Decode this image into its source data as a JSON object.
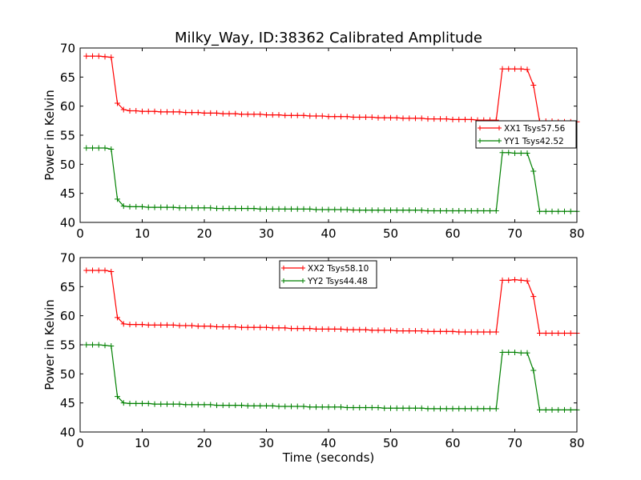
{
  "title": "Milky_Way, ID:38362 Calibrated Amplitude",
  "colors": {
    "red": "#ff0000",
    "green": "#008000"
  },
  "chart_data": [
    {
      "type": "line",
      "xlabel": "",
      "ylabel": "Power in Kelvin",
      "xlim": [
        0,
        80
      ],
      "ylim": [
        40,
        70
      ],
      "xticks": [
        0,
        10,
        20,
        30,
        40,
        50,
        60,
        70,
        80
      ],
      "yticks": [
        40,
        45,
        50,
        55,
        60,
        65,
        70
      ],
      "legend_position": "right",
      "series": [
        {
          "name": "XX1 Tsys57.56",
          "color": "#ff0000",
          "x": [
            1,
            2,
            3,
            4,
            5,
            6,
            7,
            8,
            9,
            10,
            11,
            12,
            13,
            14,
            15,
            16,
            17,
            18,
            19,
            20,
            21,
            22,
            23,
            24,
            25,
            26,
            27,
            28,
            29,
            30,
            31,
            32,
            33,
            34,
            35,
            36,
            37,
            38,
            39,
            40,
            41,
            42,
            43,
            44,
            45,
            46,
            47,
            48,
            49,
            50,
            51,
            52,
            53,
            54,
            55,
            56,
            57,
            58,
            59,
            60,
            61,
            62,
            63,
            64,
            65,
            66,
            67,
            68,
            69,
            70,
            71,
            72,
            73,
            74,
            75,
            76,
            77,
            78,
            79,
            80
          ],
          "y": [
            68.6,
            68.6,
            68.6,
            68.5,
            68.4,
            60.5,
            59.4,
            59.2,
            59.2,
            59.1,
            59.1,
            59.1,
            59.0,
            59.0,
            59.0,
            59.0,
            58.9,
            58.9,
            58.9,
            58.8,
            58.8,
            58.8,
            58.7,
            58.7,
            58.7,
            58.6,
            58.6,
            58.6,
            58.6,
            58.5,
            58.5,
            58.5,
            58.4,
            58.4,
            58.4,
            58.4,
            58.3,
            58.3,
            58.3,
            58.2,
            58.2,
            58.2,
            58.2,
            58.1,
            58.1,
            58.1,
            58.1,
            58.0,
            58.0,
            58.0,
            58.0,
            57.9,
            57.9,
            57.9,
            57.9,
            57.8,
            57.8,
            57.8,
            57.8,
            57.7,
            57.7,
            57.7,
            57.7,
            57.6,
            57.6,
            57.6,
            57.6,
            66.4,
            66.4,
            66.4,
            66.4,
            66.3,
            63.6,
            57.4,
            57.4,
            57.4,
            57.3,
            57.3,
            57.3,
            57.3
          ]
        },
        {
          "name": "YY1 Tsys42.52",
          "color": "#008000",
          "x": [
            1,
            2,
            3,
            4,
            5,
            6,
            7,
            8,
            9,
            10,
            11,
            12,
            13,
            14,
            15,
            16,
            17,
            18,
            19,
            20,
            21,
            22,
            23,
            24,
            25,
            26,
            27,
            28,
            29,
            30,
            31,
            32,
            33,
            34,
            35,
            36,
            37,
            38,
            39,
            40,
            41,
            42,
            43,
            44,
            45,
            46,
            47,
            48,
            49,
            50,
            51,
            52,
            53,
            54,
            55,
            56,
            57,
            58,
            59,
            60,
            61,
            62,
            63,
            64,
            65,
            66,
            67,
            68,
            69,
            70,
            71,
            72,
            73,
            74,
            75,
            76,
            77,
            78,
            79,
            80
          ],
          "y": [
            52.8,
            52.8,
            52.8,
            52.8,
            52.6,
            44.0,
            42.8,
            42.7,
            42.7,
            42.7,
            42.6,
            42.6,
            42.6,
            42.6,
            42.6,
            42.5,
            42.5,
            42.5,
            42.5,
            42.5,
            42.5,
            42.4,
            42.4,
            42.4,
            42.4,
            42.4,
            42.4,
            42.4,
            42.3,
            42.3,
            42.3,
            42.3,
            42.3,
            42.3,
            42.3,
            42.3,
            42.3,
            42.2,
            42.2,
            42.2,
            42.2,
            42.2,
            42.2,
            42.1,
            42.1,
            42.1,
            42.1,
            42.1,
            42.1,
            42.1,
            42.1,
            42.1,
            42.1,
            42.1,
            42.1,
            42.0,
            42.0,
            42.0,
            42.0,
            42.0,
            42.0,
            42.0,
            42.0,
            42.0,
            42.0,
            42.0,
            42.0,
            52.0,
            52.0,
            51.9,
            51.9,
            51.9,
            48.8,
            41.9,
            41.9,
            41.9,
            41.9,
            41.9,
            41.9,
            41.9
          ]
        }
      ]
    },
    {
      "type": "line",
      "xlabel": "Time (seconds)",
      "ylabel": "Power in Kelvin",
      "xlim": [
        0,
        80
      ],
      "ylim": [
        40,
        70
      ],
      "xticks": [
        0,
        10,
        20,
        30,
        40,
        50,
        60,
        70,
        80
      ],
      "yticks": [
        40,
        45,
        50,
        55,
        60,
        65,
        70
      ],
      "legend_position": "upper center",
      "series": [
        {
          "name": "XX2 Tsys58.10",
          "color": "#ff0000",
          "x": [
            1,
            2,
            3,
            4,
            5,
            6,
            7,
            8,
            9,
            10,
            11,
            12,
            13,
            14,
            15,
            16,
            17,
            18,
            19,
            20,
            21,
            22,
            23,
            24,
            25,
            26,
            27,
            28,
            29,
            30,
            31,
            32,
            33,
            34,
            35,
            36,
            37,
            38,
            39,
            40,
            41,
            42,
            43,
            44,
            45,
            46,
            47,
            48,
            49,
            50,
            51,
            52,
            53,
            54,
            55,
            56,
            57,
            58,
            59,
            60,
            61,
            62,
            63,
            64,
            65,
            66,
            67,
            68,
            69,
            70,
            71,
            72,
            73,
            74,
            75,
            76,
            77,
            78,
            79,
            80
          ],
          "y": [
            67.8,
            67.8,
            67.8,
            67.8,
            67.6,
            59.7,
            58.6,
            58.5,
            58.5,
            58.5,
            58.4,
            58.4,
            58.4,
            58.4,
            58.4,
            58.3,
            58.3,
            58.3,
            58.2,
            58.2,
            58.2,
            58.1,
            58.1,
            58.1,
            58.1,
            58.0,
            58.0,
            58.0,
            58.0,
            58.0,
            57.9,
            57.9,
            57.9,
            57.8,
            57.8,
            57.8,
            57.8,
            57.7,
            57.7,
            57.7,
            57.7,
            57.7,
            57.6,
            57.6,
            57.6,
            57.6,
            57.5,
            57.5,
            57.5,
            57.5,
            57.4,
            57.4,
            57.4,
            57.4,
            57.4,
            57.3,
            57.3,
            57.3,
            57.3,
            57.3,
            57.2,
            57.2,
            57.2,
            57.2,
            57.2,
            57.2,
            57.2,
            66.1,
            66.1,
            66.2,
            66.1,
            66.0,
            63.3,
            57.0,
            57.0,
            57.0,
            57.0,
            57.0,
            57.0,
            57.0
          ]
        },
        {
          "name": "YY2 Tsys44.48",
          "color": "#008000",
          "x": [
            1,
            2,
            3,
            4,
            5,
            6,
            7,
            8,
            9,
            10,
            11,
            12,
            13,
            14,
            15,
            16,
            17,
            18,
            19,
            20,
            21,
            22,
            23,
            24,
            25,
            26,
            27,
            28,
            29,
            30,
            31,
            32,
            33,
            34,
            35,
            36,
            37,
            38,
            39,
            40,
            41,
            42,
            43,
            44,
            45,
            46,
            47,
            48,
            49,
            50,
            51,
            52,
            53,
            54,
            55,
            56,
            57,
            58,
            59,
            60,
            61,
            62,
            63,
            64,
            65,
            66,
            67,
            68,
            69,
            70,
            71,
            72,
            73,
            74,
            75,
            76,
            77,
            78,
            79,
            80
          ],
          "y": [
            55.0,
            55.0,
            55.0,
            54.9,
            54.8,
            46.1,
            45.0,
            44.9,
            44.9,
            44.9,
            44.9,
            44.8,
            44.8,
            44.8,
            44.8,
            44.8,
            44.7,
            44.7,
            44.7,
            44.7,
            44.7,
            44.6,
            44.6,
            44.6,
            44.6,
            44.6,
            44.5,
            44.5,
            44.5,
            44.5,
            44.5,
            44.4,
            44.4,
            44.4,
            44.4,
            44.4,
            44.3,
            44.3,
            44.3,
            44.3,
            44.3,
            44.3,
            44.2,
            44.2,
            44.2,
            44.2,
            44.2,
            44.2,
            44.1,
            44.1,
            44.1,
            44.1,
            44.1,
            44.1,
            44.1,
            44.0,
            44.0,
            44.0,
            44.0,
            44.0,
            44.0,
            44.0,
            44.0,
            44.0,
            44.0,
            44.0,
            44.0,
            53.7,
            53.7,
            53.7,
            53.6,
            53.6,
            50.6,
            43.8,
            43.8,
            43.8,
            43.8,
            43.8,
            43.8,
            43.8
          ]
        }
      ]
    }
  ]
}
